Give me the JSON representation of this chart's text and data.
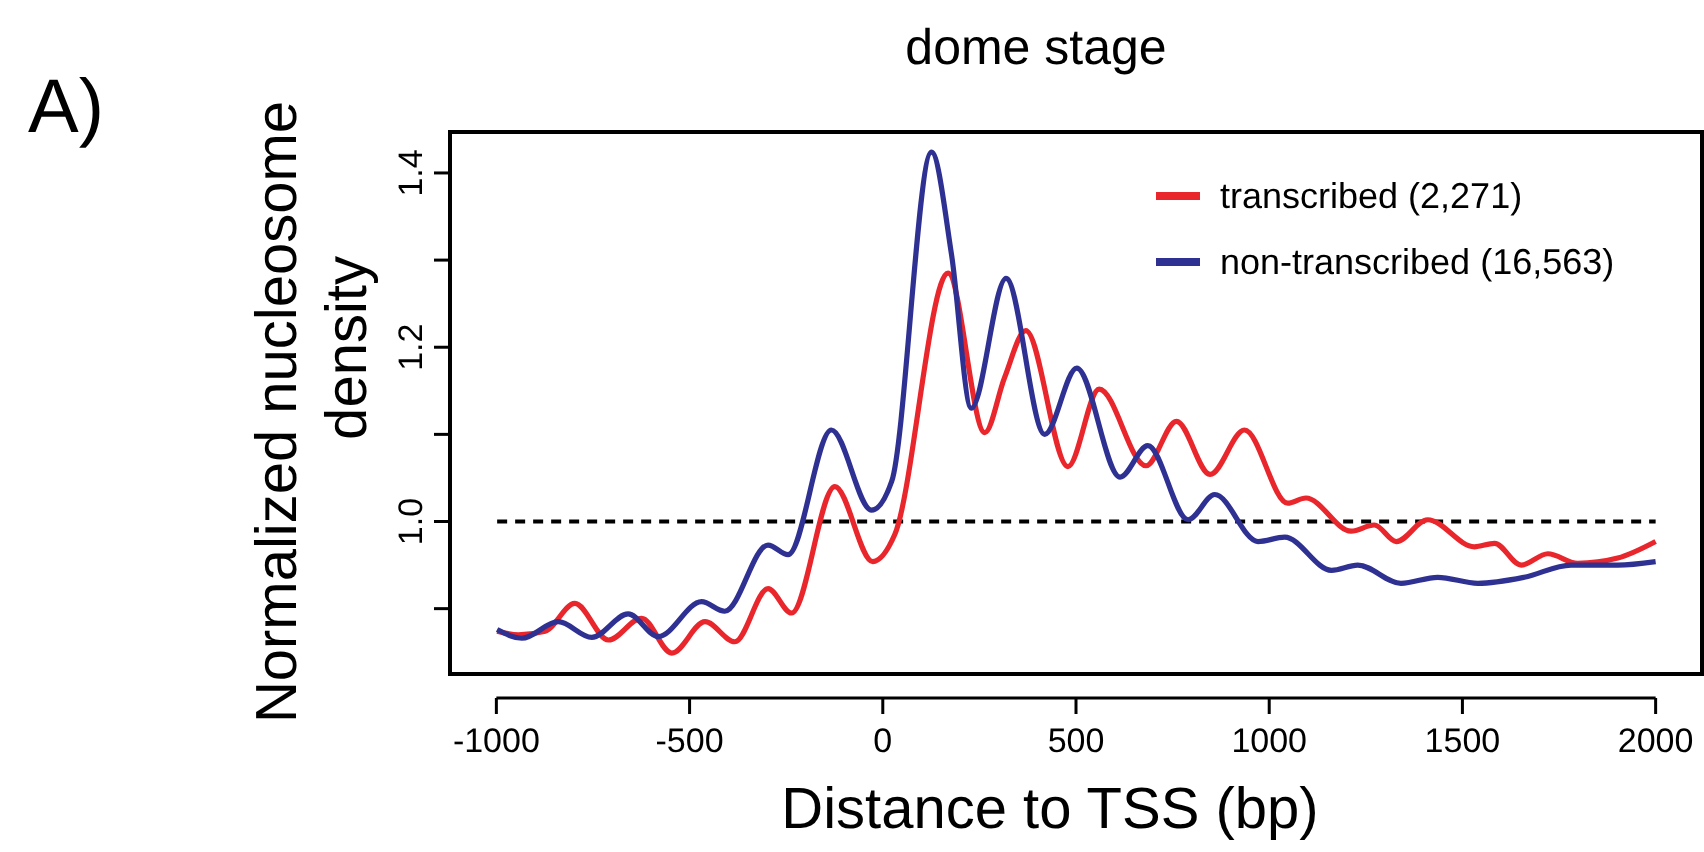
{
  "chart_data": {
    "type": "line",
    "title": "dome stage",
    "xlabel": "Distance to TSS (bp)",
    "ylabel": "Normalized nucleosome density",
    "annotations": [
      "A)"
    ],
    "xlim": [
      -1120,
      2120
    ],
    "ylim": [
      0.825,
      1.447
    ],
    "xticks": [
      -1000,
      -500,
      0,
      500,
      1000,
      1500,
      2000
    ],
    "yticks": [
      {
        "value": 0.9,
        "label": null
      },
      {
        "value": 1.0,
        "label": "1.0"
      },
      {
        "value": 1.1,
        "label": null
      },
      {
        "value": 1.2,
        "label": "1.2"
      },
      {
        "value": 1.3,
        "label": null
      },
      {
        "value": 1.4,
        "label": "1.4"
      }
    ],
    "legend": "top right",
    "grid": false,
    "line_style": "solid",
    "marker": "none",
    "ref_lines": [
      {
        "axis": "y",
        "value": 1.0,
        "color": "#000000",
        "line_style": "dashed"
      }
    ],
    "series": [
      {
        "name": "transcribed (2,271)",
        "color": "#e8262b",
        "x": [
          -998,
          -943,
          -874,
          -797,
          -710,
          -624,
          -546,
          -460,
          -383,
          -297,
          -236,
          -124,
          -26,
          31,
          169,
          264,
          315,
          370,
          479,
          560,
          681,
          760,
          847,
          936,
          1048,
          1095,
          1212,
          1272,
          1329,
          1410,
          1531,
          1583,
          1652,
          1721,
          1798,
          1902,
          2000
        ],
        "values": [
          0.874,
          0.87,
          0.874,
          0.906,
          0.864,
          0.889,
          0.849,
          0.885,
          0.862,
          0.923,
          0.895,
          1.04,
          0.954,
          0.985,
          1.285,
          1.102,
          1.165,
          1.219,
          1.063,
          1.152,
          1.064,
          1.115,
          1.054,
          1.105,
          1.021,
          1.027,
          0.989,
          0.996,
          0.977,
          1.002,
          0.971,
          0.975,
          0.95,
          0.963,
          0.952,
          0.958,
          0.977
        ]
      },
      {
        "name": "non-transcribed (16,563)",
        "color": "#2e3192",
        "x": [
          -998,
          -934,
          -840,
          -753,
          -659,
          -581,
          -469,
          -409,
          -297,
          -245,
          -133,
          -29,
          23,
          126,
          178,
          229,
          319,
          419,
          502,
          614,
          686,
          790,
          859,
          971,
          1040,
          1161,
          1229,
          1341,
          1436,
          1540,
          1660,
          1781,
          1902,
          2000
        ],
        "values": [
          0.876,
          0.866,
          0.885,
          0.867,
          0.894,
          0.868,
          0.908,
          0.897,
          0.973,
          0.962,
          1.105,
          1.013,
          1.046,
          1.424,
          1.306,
          1.13,
          1.279,
          1.1,
          1.176,
          1.051,
          1.087,
          1.002,
          1.031,
          0.977,
          0.982,
          0.944,
          0.95,
          0.929,
          0.936,
          0.929,
          0.936,
          0.95,
          0.95,
          0.954
        ]
      }
    ]
  }
}
